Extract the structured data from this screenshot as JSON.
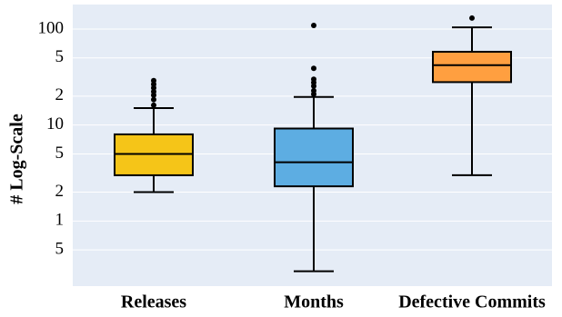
{
  "chart_data": {
    "type": "box",
    "y_label": "# Log-Scale",
    "log_scale": true,
    "grid": true,
    "ylim": [
      0.21,
      180
    ],
    "yticks": [
      100,
      {
        "value": 50,
        "label": "5"
      },
      {
        "value": 20,
        "label": "2"
      },
      10,
      5,
      2,
      1,
      {
        "value": 0.5,
        "label": "5"
      }
    ],
    "boxes": [
      {
        "name": "Releases",
        "color": "#f5c518",
        "whisker_low": 2,
        "q1": 3,
        "median": 5,
        "q3": 8,
        "whisker_high": 15,
        "outliers": [
          16.1,
          18.4,
          20.5,
          22.3,
          24.4,
          26.6,
          29
        ]
      },
      {
        "name": "Months",
        "color": "#5dade2",
        "whisker_low": 0.3,
        "q1": 2.3,
        "median": 4.1,
        "q3": 9.2,
        "whisker_high": 19.6,
        "outliers": [
          21,
          22.8,
          25.5,
          27.7,
          30,
          39,
          109
        ]
      },
      {
        "name": "Defective Commits",
        "color": "#ff9f40",
        "whisker_low": 3,
        "q1": 28,
        "median": 42,
        "q3": 58,
        "whisker_high": 104,
        "outliers": [
          130
        ]
      }
    ]
  }
}
